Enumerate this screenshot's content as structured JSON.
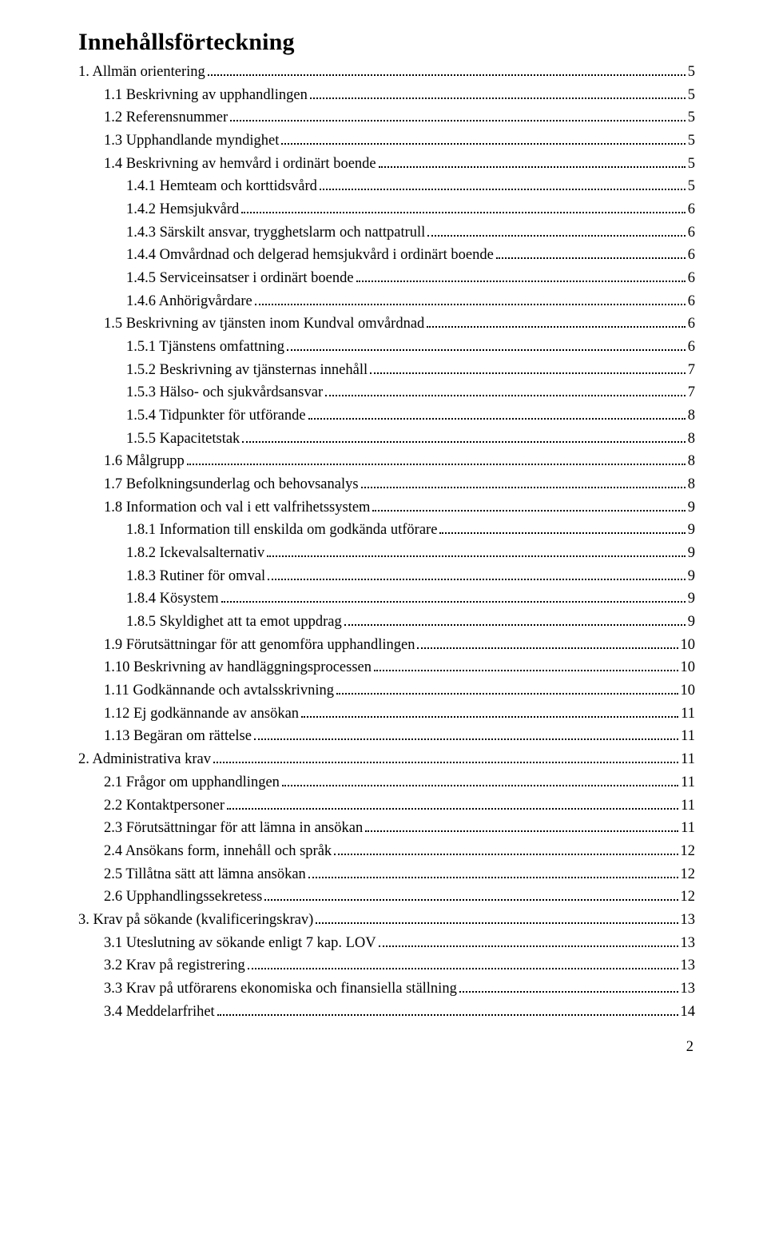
{
  "title": "Innehållsförteckning",
  "page_number": "2",
  "toc": [
    {
      "indent": 0,
      "label": "1.    Allmän orientering",
      "page": "5"
    },
    {
      "indent": 1,
      "label": "1.1 Beskrivning av upphandlingen",
      "page": "5"
    },
    {
      "indent": 1,
      "label": "1.2 Referensnummer",
      "page": "5"
    },
    {
      "indent": 1,
      "label": "1.3 Upphandlande myndighet",
      "page": "5"
    },
    {
      "indent": 1,
      "label": "1.4 Beskrivning av hemvård i ordinärt boende",
      "page": "5"
    },
    {
      "indent": 2,
      "label": "1.4.1 Hemteam och korttidsvård",
      "page": "5"
    },
    {
      "indent": 2,
      "label": "1.4.2 Hemsjukvård",
      "page": "6"
    },
    {
      "indent": 2,
      "label": "1.4.3 Särskilt ansvar, trygghetslarm och nattpatrull",
      "page": "6"
    },
    {
      "indent": 2,
      "label": "1.4.4 Omvårdnad och delgerad hemsjukvård i ordinärt boende",
      "page": "6"
    },
    {
      "indent": 2,
      "label": "1.4.5 Serviceinsatser i ordinärt boende",
      "page": "6"
    },
    {
      "indent": 2,
      "label": "1.4.6 Anhörigvårdare",
      "page": "6"
    },
    {
      "indent": 1,
      "label": "1.5 Beskrivning av tjänsten inom Kundval omvårdnad",
      "page": "6"
    },
    {
      "indent": 2,
      "label": "1.5.1 Tjänstens omfattning",
      "page": "6"
    },
    {
      "indent": 2,
      "label": "1.5.2 Beskrivning av tjänsternas innehåll",
      "page": "7"
    },
    {
      "indent": 2,
      "label": "1.5.3 Hälso- och sjukvårdsansvar",
      "page": "7"
    },
    {
      "indent": 2,
      "label": "1.5.4 Tidpunkter för utförande",
      "page": "8"
    },
    {
      "indent": 2,
      "label": "1.5.5 Kapacitetstak",
      "page": "8"
    },
    {
      "indent": 1,
      "label": "1.6 Målgrupp",
      "page": "8"
    },
    {
      "indent": 1,
      "label": "1.7 Befolkningsunderlag och behovsanalys",
      "page": "8"
    },
    {
      "indent": 1,
      "label": "1.8 Information och val i ett valfrihetssystem",
      "page": "9"
    },
    {
      "indent": 2,
      "label": "1.8.1 Information till enskilda om godkända utförare",
      "page": "9"
    },
    {
      "indent": 2,
      "label": "1.8.2 Ickevalsalternativ",
      "page": "9"
    },
    {
      "indent": 2,
      "label": "1.8.3 Rutiner för omval",
      "page": "9"
    },
    {
      "indent": 2,
      "label": "1.8.4 Kösystem",
      "page": "9"
    },
    {
      "indent": 2,
      "label": "1.8.5 Skyldighet att ta emot uppdrag",
      "page": "9"
    },
    {
      "indent": 1,
      "label": "1.9 Förutsättningar för att genomföra upphandlingen",
      "page": "10"
    },
    {
      "indent": 1,
      "label": "1.10 Beskrivning av handläggningsprocessen",
      "page": "10"
    },
    {
      "indent": 1,
      "label": "1.11 Godkännande och avtalsskrivning",
      "page": "10"
    },
    {
      "indent": 1,
      "label": "1.12 Ej godkännande av ansökan",
      "page": "11"
    },
    {
      "indent": 1,
      "label": "1.13 Begäran om rättelse",
      "page": "11"
    },
    {
      "indent": 0,
      "label": "2.    Administrativa krav",
      "page": "11"
    },
    {
      "indent": 1,
      "label": "2.1 Frågor om upphandlingen",
      "page": "11"
    },
    {
      "indent": 1,
      "label": "2.2 Kontaktpersoner",
      "page": "11"
    },
    {
      "indent": 1,
      "label": "2.3 Förutsättningar för att lämna in ansökan",
      "page": "11"
    },
    {
      "indent": 1,
      "label": "2.4 Ansökans form, innehåll och språk",
      "page": "12"
    },
    {
      "indent": 1,
      "label": "2.5 Tillåtna sätt att lämna ansökan",
      "page": "12"
    },
    {
      "indent": 1,
      "label": "2.6 Upphandlingssekretess",
      "page": "12"
    },
    {
      "indent": 0,
      "label": "3.    Krav på sökande (kvalificeringskrav)",
      "page": "13"
    },
    {
      "indent": 1,
      "label": "3.1 Uteslutning av sökande enligt 7 kap. LOV",
      "page": "13"
    },
    {
      "indent": 1,
      "label": "3.2 Krav på registrering",
      "page": "13"
    },
    {
      "indent": 1,
      "label": "3.3 Krav på utförarens ekonomiska och finansiella ställning",
      "page": "13"
    },
    {
      "indent": 1,
      "label": "3.4 Meddelarfrihet",
      "page": "14"
    }
  ]
}
